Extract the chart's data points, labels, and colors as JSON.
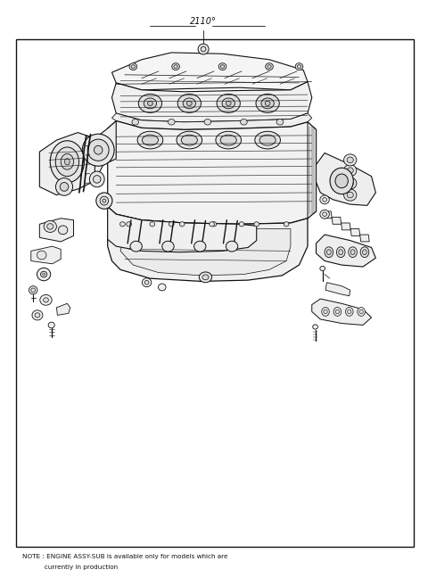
{
  "title_label": "2110°",
  "note_line1": "NOTE : ENGINE ASSY-SUB is available only for models which are",
  "note_line2": "           currently in production",
  "bg_color": "#ffffff",
  "border_color": "#000000",
  "line_color": "#111111",
  "text_color": "#111111",
  "fig_width": 4.8,
  "fig_height": 6.57,
  "dpi": 100
}
